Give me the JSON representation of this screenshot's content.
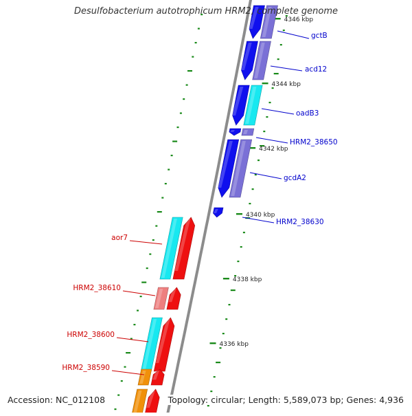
{
  "title": "Desulfobacterium autotrophicum HRM2, complete genome",
  "footer": {
    "accession": "Accession: NC_012108",
    "summary": "Topology: circular; Length: 5,589,073 bp; Genes: 4,936"
  },
  "colors": {
    "backbone": "#8c8c8c",
    "tick": "#1a8a1a",
    "label_forward": "#0000cc",
    "label_reverse": "#cc0000",
    "blue": "#1010ee",
    "slate": "#7a70d6",
    "cyan": "#18e8f0",
    "red": "#ee1010",
    "pink": "#ee7f7f",
    "orange": "#f0900a"
  },
  "ruler": [
    {
      "label": "4346 kbp"
    },
    {
      "label": "4344 kbp"
    },
    {
      "label": "4342 kbp"
    },
    {
      "label": "4340 kbp"
    },
    {
      "label": "4338 kbp"
    },
    {
      "label": "4336 kbp"
    }
  ],
  "genes": [
    {
      "name": "gctB",
      "strand": "forward"
    },
    {
      "name": "acd12",
      "strand": "forward"
    },
    {
      "name": "oadB3",
      "strand": "forward"
    },
    {
      "name": "HRM2_38650",
      "strand": "forward"
    },
    {
      "name": "gcdA2",
      "strand": "forward"
    },
    {
      "name": "HRM2_38630",
      "strand": "forward"
    },
    {
      "name": "aor7",
      "strand": "reverse"
    },
    {
      "name": "HRM2_38610",
      "strand": "reverse"
    },
    {
      "name": "HRM2_38600",
      "strand": "reverse"
    },
    {
      "name": "HRM2_38590",
      "strand": "reverse"
    }
  ]
}
